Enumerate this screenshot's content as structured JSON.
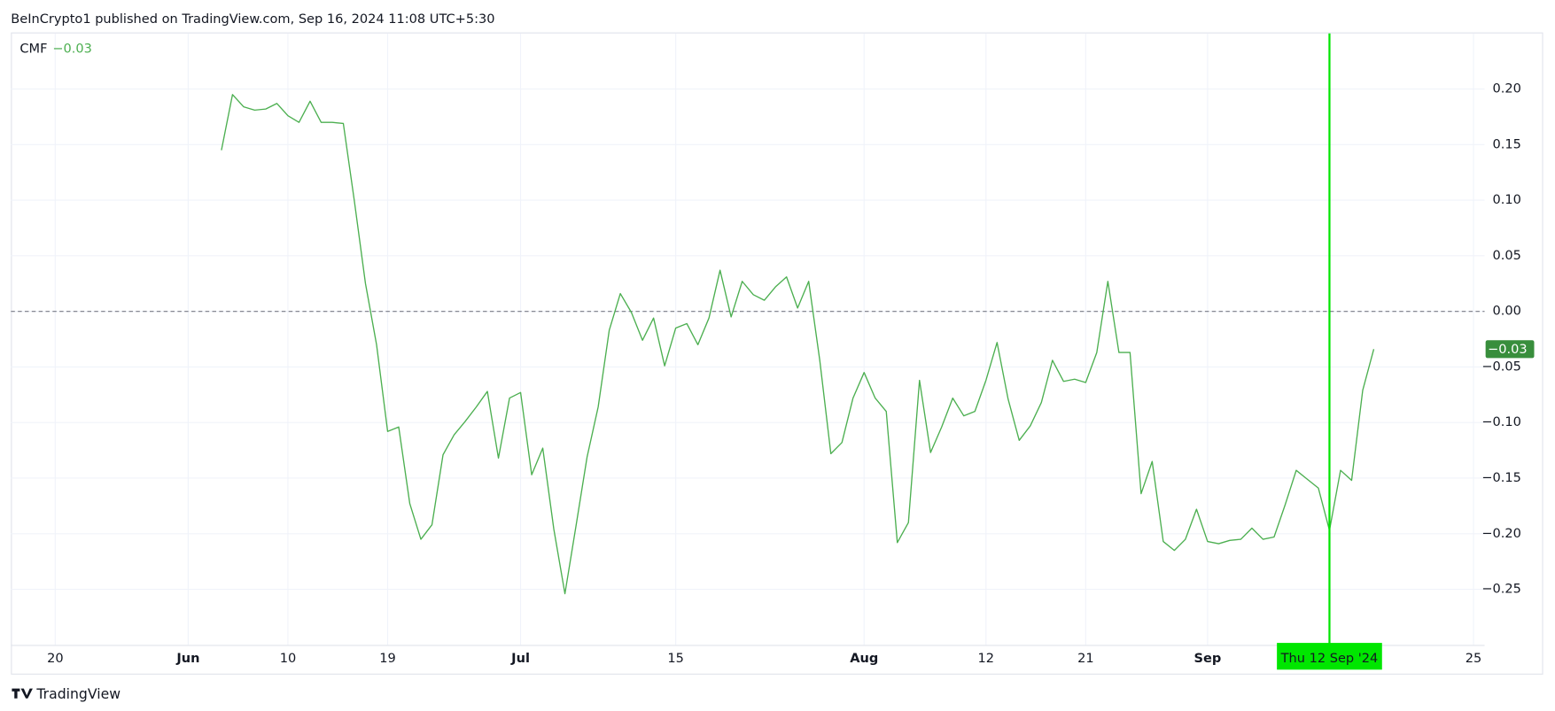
{
  "chart_data": {
    "type": "line",
    "title": "BeInCrypto1 published on TradingView.com, Sep 16, 2024 11:08 UTC+5:30",
    "indicator": {
      "name": "CMF",
      "value_label": "−0.03"
    },
    "brand": "TradingView",
    "x": [
      "2024-06-04",
      "2024-06-05",
      "2024-06-06",
      "2024-06-07",
      "2024-06-08",
      "2024-06-09",
      "2024-06-10",
      "2024-06-11",
      "2024-06-12",
      "2024-06-13",
      "2024-06-14",
      "2024-06-15",
      "2024-06-16",
      "2024-06-17",
      "2024-06-18",
      "2024-06-19",
      "2024-06-20",
      "2024-06-21",
      "2024-06-22",
      "2024-06-23",
      "2024-06-24",
      "2024-06-25",
      "2024-06-26",
      "2024-06-27",
      "2024-06-28",
      "2024-06-29",
      "2024-06-30",
      "2024-07-01",
      "2024-07-02",
      "2024-07-03",
      "2024-07-04",
      "2024-07-05",
      "2024-07-06",
      "2024-07-07",
      "2024-07-08",
      "2024-07-09",
      "2024-07-10",
      "2024-07-11",
      "2024-07-12",
      "2024-07-13",
      "2024-07-14",
      "2024-07-15",
      "2024-07-16",
      "2024-07-17",
      "2024-07-18",
      "2024-07-19",
      "2024-07-20",
      "2024-07-21",
      "2024-07-22",
      "2024-07-23",
      "2024-07-24",
      "2024-07-25",
      "2024-07-26",
      "2024-07-27",
      "2024-07-28",
      "2024-07-29",
      "2024-07-30",
      "2024-07-31",
      "2024-08-01",
      "2024-08-02",
      "2024-08-03",
      "2024-08-04",
      "2024-08-05",
      "2024-08-06",
      "2024-08-07",
      "2024-08-08",
      "2024-08-09",
      "2024-08-10",
      "2024-08-11",
      "2024-08-12",
      "2024-08-13",
      "2024-08-14",
      "2024-08-15",
      "2024-08-16",
      "2024-08-17",
      "2024-08-18",
      "2024-08-19",
      "2024-08-20",
      "2024-08-21",
      "2024-08-22",
      "2024-08-23",
      "2024-08-24",
      "2024-08-25",
      "2024-08-26",
      "2024-08-27",
      "2024-08-28",
      "2024-08-29",
      "2024-08-30",
      "2024-08-31",
      "2024-09-01",
      "2024-09-02",
      "2024-09-03",
      "2024-09-04",
      "2024-09-05",
      "2024-09-06",
      "2024-09-07",
      "2024-09-08",
      "2024-09-09",
      "2024-09-10",
      "2024-09-11",
      "2024-09-12",
      "2024-09-13",
      "2024-09-14",
      "2024-09-15",
      "2024-09-16"
    ],
    "series": [
      {
        "name": "CMF",
        "color": "#4caf50",
        "values": [
          0.145,
          0.195,
          0.184,
          0.181,
          0.182,
          0.187,
          0.176,
          0.17,
          0.189,
          0.17,
          0.17,
          0.169,
          0.099,
          0.025,
          -0.03,
          -0.108,
          -0.104,
          -0.173,
          -0.205,
          -0.192,
          -0.129,
          -0.111,
          -0.099,
          -0.086,
          -0.072,
          -0.132,
          -0.078,
          -0.073,
          -0.147,
          -0.123,
          -0.196,
          -0.254,
          -0.193,
          -0.131,
          -0.086,
          -0.017,
          0.016,
          -0.001,
          -0.026,
          -0.006,
          -0.049,
          -0.015,
          -0.011,
          -0.03,
          -0.006,
          0.037,
          -0.005,
          0.027,
          0.015,
          0.01,
          0.022,
          0.031,
          0.003,
          0.027,
          -0.044,
          -0.128,
          -0.118,
          -0.078,
          -0.055,
          -0.078,
          -0.09,
          -0.208,
          -0.19,
          -0.062,
          -0.127,
          -0.104,
          -0.078,
          -0.094,
          -0.09,
          -0.062,
          -0.028,
          -0.079,
          -0.116,
          -0.103,
          -0.082,
          -0.044,
          -0.063,
          -0.061,
          -0.064,
          -0.037,
          0.027,
          -0.037,
          -0.037,
          -0.164,
          -0.135,
          -0.207,
          -0.215,
          -0.205,
          -0.178,
          -0.207,
          -0.209,
          -0.206,
          -0.205,
          -0.195,
          -0.205,
          -0.203,
          -0.174,
          -0.143,
          -0.151,
          -0.159,
          -0.197,
          -0.143,
          -0.152,
          -0.071,
          -0.034
        ]
      }
    ],
    "xlim": [
      "2024-05-16",
      "2024-09-26"
    ],
    "xticks": [
      {
        "value": "2024-05-20",
        "label": "20"
      },
      {
        "value": "2024-06-01",
        "label": "Jun"
      },
      {
        "value": "2024-06-10",
        "label": "10"
      },
      {
        "value": "2024-06-19",
        "label": "19"
      },
      {
        "value": "2024-07-01",
        "label": "Jul"
      },
      {
        "value": "2024-07-15",
        "label": "15"
      },
      {
        "value": "2024-08-01",
        "label": "Aug"
      },
      {
        "value": "2024-08-12",
        "label": "12"
      },
      {
        "value": "2024-08-21",
        "label": "21"
      },
      {
        "value": "2024-09-01",
        "label": "Sep"
      },
      {
        "value": "2024-09-25",
        "label": "25"
      }
    ],
    "ylim": [
      -0.3,
      0.25
    ],
    "yticks": [
      {
        "value": 0.2,
        "label": "0.20"
      },
      {
        "value": 0.15,
        "label": "0.15"
      },
      {
        "value": 0.1,
        "label": "0.10"
      },
      {
        "value": 0.05,
        "label": "0.05"
      },
      {
        "value": 0,
        "label": "0.00"
      },
      {
        "value": -0.05,
        "label": "−0.05"
      },
      {
        "value": -0.1,
        "label": "−0.10"
      },
      {
        "value": -0.15,
        "label": "−0.15"
      },
      {
        "value": -0.2,
        "label": "−0.20"
      },
      {
        "value": -0.25,
        "label": "−0.25"
      }
    ],
    "grid": true,
    "reference_line": 0,
    "crosshair": {
      "x": "2024-09-12",
      "label": "Thu 12 Sep '24",
      "color": "#00e600"
    }
  }
}
